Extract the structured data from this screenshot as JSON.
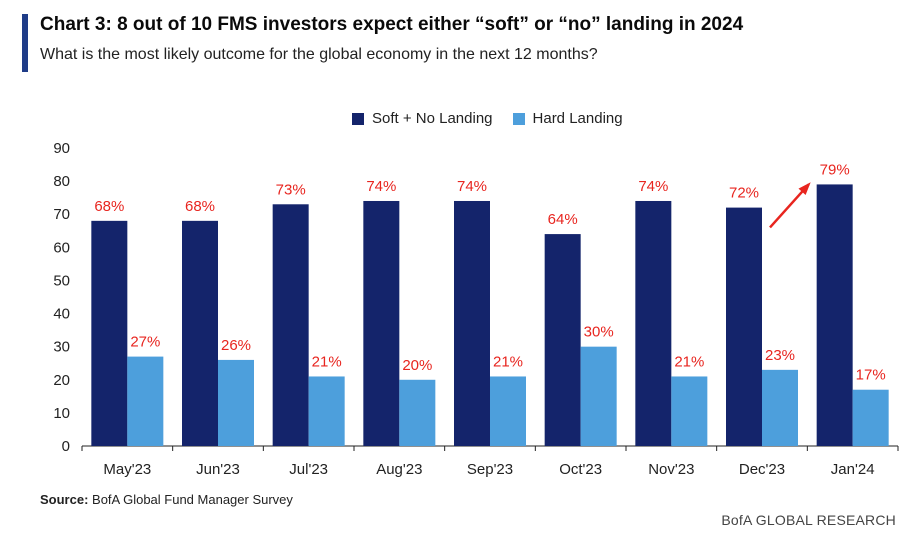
{
  "header": {
    "title": "Chart 3: 8 out of 10 FMS investors expect either “soft” or “no” landing in 2024",
    "subtitle": "What is the most likely outcome for the global economy in the next 12 months?"
  },
  "footer": {
    "source_label": "Source:",
    "source_text": " BofA Global Fund Manager Survey",
    "brand": "BofA GLOBAL RESEARCH"
  },
  "colors": {
    "soft": "#14246b",
    "hard": "#4d9fdc",
    "label": "#e8251f",
    "accent": "#1f3c88"
  },
  "chart_data": {
    "type": "bar",
    "categories": [
      "May'23",
      "Jun'23",
      "Jul'23",
      "Aug'23",
      "Sep'23",
      "Oct'23",
      "Nov'23",
      "Dec'23",
      "Jan'24"
    ],
    "series": [
      {
        "name": "Soft + No Landing",
        "values": [
          68,
          68,
          73,
          74,
          74,
          64,
          74,
          72,
          79
        ],
        "labels": [
          "68%",
          "68%",
          "73%",
          "74%",
          "74%",
          "64%",
          "74%",
          "72%",
          "79%"
        ]
      },
      {
        "name": "Hard Landing",
        "values": [
          27,
          26,
          21,
          20,
          21,
          30,
          21,
          23,
          17
        ],
        "labels": [
          "27%",
          "26%",
          "21%",
          "20%",
          "21%",
          "30%",
          "21%",
          "23%",
          "17%"
        ]
      }
    ],
    "ylim": [
      0,
      90
    ],
    "yticks": [
      0,
      10,
      20,
      30,
      40,
      50,
      60,
      70,
      80,
      90
    ],
    "legend_position": "top-center",
    "grid": false,
    "annotations": [
      "arrow from Dec'23 to Jan'24"
    ]
  }
}
